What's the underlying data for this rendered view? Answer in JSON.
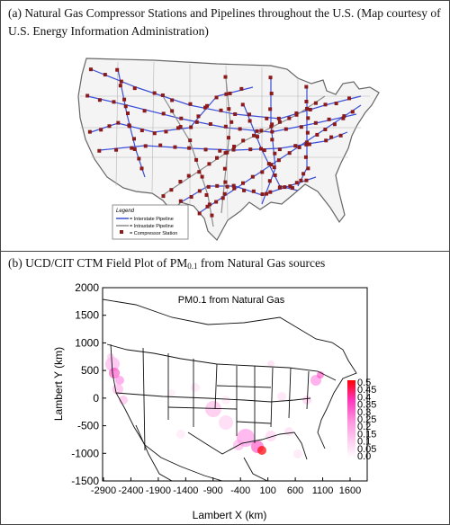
{
  "panel_a": {
    "caption": "(a) Natural Gas Compressor Stations and Pipelines throughout the U.S. (Map courtesy of U.S. Energy Information Administration)",
    "legend": {
      "title": "Legend",
      "items": [
        "= Interstate Pipeline",
        "= Intrastate Pipeline",
        "= Compressor Station"
      ]
    },
    "colors": {
      "interstate": "#3a4fd8",
      "intrastate": "#8c8c8c",
      "station": "#8b1a1a"
    }
  },
  "panel_b": {
    "caption_prefix": "(b) UCD/CIT CTM Field Plot of PM",
    "caption_sub": "0.1",
    "caption_suffix": " from Natural Gas sources",
    "plot_title": "PM0.1 from Natural Gas",
    "xlabel": "Lambert X (km)",
    "ylabel": "Lambert Y (km)",
    "x_ticks": [
      "-2900",
      "-2400",
      "-1900",
      "-1400",
      "-900",
      "-400",
      "100",
      "600",
      "1100",
      "1600"
    ],
    "y_ticks": [
      "2000",
      "1500",
      "1000",
      "500",
      "0",
      "-500",
      "-1000",
      "-1500"
    ],
    "colorbar_ticks": [
      "0.5",
      "0.45",
      "0.4",
      "0.35",
      "0.3",
      "0.25",
      "0.2",
      "0.15",
      "0.1",
      "0.05",
      "0.0"
    ],
    "colors": {
      "low": "#ffffff",
      "mid": "#ff44cc",
      "high": "#ff0000"
    }
  }
}
